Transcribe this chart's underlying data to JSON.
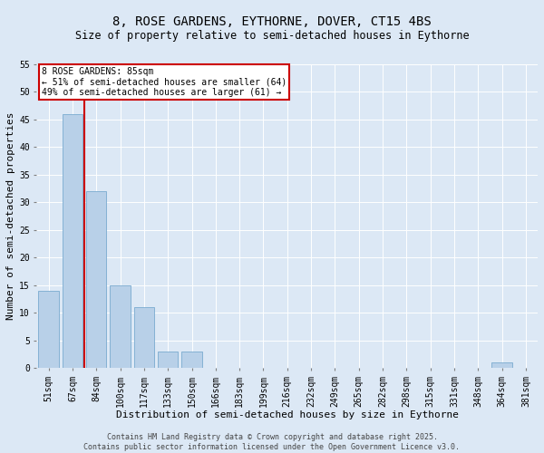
{
  "title": "8, ROSE GARDENS, EYTHORNE, DOVER, CT15 4BS",
  "subtitle": "Size of property relative to semi-detached houses in Eythorne",
  "xlabel": "Distribution of semi-detached houses by size in Eythorne",
  "ylabel": "Number of semi-detached properties",
  "categories": [
    "51sqm",
    "67sqm",
    "84sqm",
    "100sqm",
    "117sqm",
    "133sqm",
    "150sqm",
    "166sqm",
    "183sqm",
    "199sqm",
    "216sqm",
    "232sqm",
    "249sqm",
    "265sqm",
    "282sqm",
    "298sqm",
    "315sqm",
    "331sqm",
    "348sqm",
    "364sqm",
    "381sqm"
  ],
  "values": [
    14,
    46,
    32,
    15,
    11,
    3,
    3,
    0,
    0,
    0,
    0,
    0,
    0,
    0,
    0,
    0,
    0,
    0,
    0,
    1,
    0
  ],
  "bar_color": "#b8d0e8",
  "bar_edgecolor": "#7aaacf",
  "highlight_line_index": 1,
  "highlight_line_color": "#cc0000",
  "annotation_title": "8 ROSE GARDENS: 85sqm",
  "annotation_line1": "← 51% of semi-detached houses are smaller (64)",
  "annotation_line2": "49% of semi-detached houses are larger (61) →",
  "annotation_box_edgecolor": "#cc0000",
  "ylim": [
    0,
    55
  ],
  "yticks": [
    0,
    5,
    10,
    15,
    20,
    25,
    30,
    35,
    40,
    45,
    50,
    55
  ],
  "footer_line1": "Contains HM Land Registry data © Crown copyright and database right 2025.",
  "footer_line2": "Contains public sector information licensed under the Open Government Licence v3.0.",
  "background_color": "#dce8f5",
  "plot_background_color": "#dce8f5",
  "title_fontsize": 10,
  "subtitle_fontsize": 8.5,
  "tick_fontsize": 7,
  "axis_label_fontsize": 8,
  "annotation_fontsize": 7,
  "footer_fontsize": 6
}
